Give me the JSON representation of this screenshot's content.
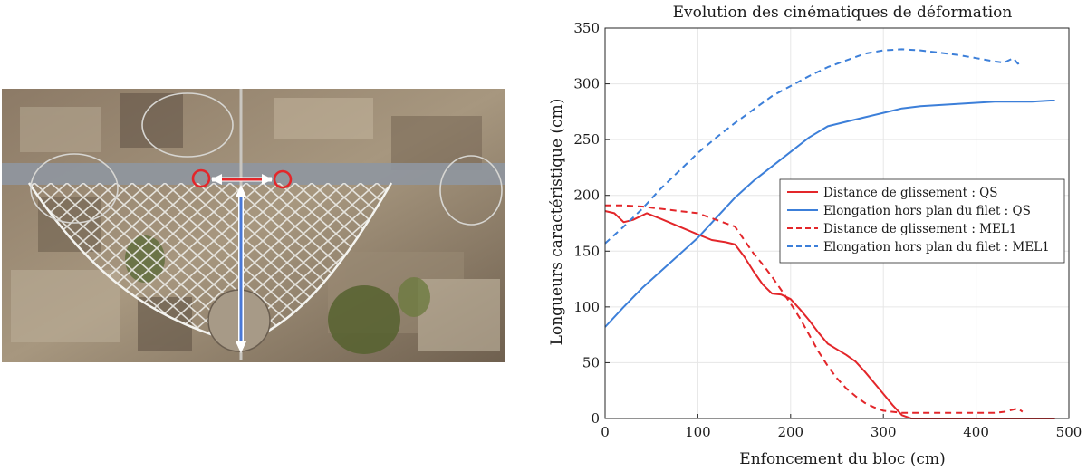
{
  "photo": {
    "subject": "rockfall-net-field-test",
    "markers": {
      "circle_color": "#e3262a",
      "horizontal_arrow_color": "#e3262a",
      "vertical_arrow_color": "#4a78d6"
    }
  },
  "chart_data": {
    "type": "line",
    "title": "Evolution des cinématiques de déformation",
    "xlabel": "Enfoncement du bloc (cm)",
    "ylabel": "Longueurs caractéristique (cm)",
    "xlim": [
      0,
      500
    ],
    "ylim": [
      0,
      350
    ],
    "xticks": [
      0,
      100,
      200,
      300,
      400,
      500
    ],
    "yticks": [
      0,
      50,
      100,
      150,
      200,
      250,
      300,
      350
    ],
    "grid": true,
    "legend_position": "middle-right",
    "series": [
      {
        "name": "Distance de glissement : QS",
        "color": "#e3262a",
        "dash": "solid",
        "x": [
          0,
          10,
          20,
          30,
          45,
          60,
          80,
          100,
          115,
          130,
          140,
          150,
          160,
          170,
          180,
          190,
          200,
          210,
          220,
          230,
          240,
          250,
          260,
          270,
          280,
          290,
          300,
          310,
          320,
          330,
          340,
          360,
          380,
          400,
          420,
          440,
          460,
          480,
          485
        ],
        "y": [
          186,
          184,
          176,
          178,
          184,
          179,
          172,
          165,
          160,
          158,
          156,
          145,
          132,
          120,
          112,
          111,
          107,
          98,
          88,
          77,
          67,
          62,
          57,
          51,
          42,
          32,
          22,
          12,
          3,
          0,
          0,
          0,
          0,
          0,
          0,
          0,
          0,
          0,
          0
        ]
      },
      {
        "name": "Elongation hors plan du filet : QS",
        "color": "#3c7fd9",
        "dash": "solid",
        "x": [
          0,
          20,
          40,
          60,
          80,
          100,
          120,
          140,
          160,
          180,
          200,
          220,
          240,
          260,
          280,
          300,
          320,
          340,
          360,
          380,
          400,
          420,
          440,
          460,
          480,
          485
        ],
        "y": [
          82,
          100,
          117,
          132,
          147,
          162,
          180,
          198,
          213,
          226,
          239,
          252,
          262,
          266,
          270,
          274,
          278,
          280,
          281,
          282,
          283,
          284,
          284,
          284,
          285,
          285
        ]
      },
      {
        "name": "Distance de glissement : MEL1",
        "color": "#e3262a",
        "dash": "dashed",
        "x": [
          0,
          20,
          40,
          60,
          80,
          100,
          120,
          140,
          150,
          160,
          170,
          180,
          190,
          200,
          210,
          220,
          230,
          240,
          250,
          260,
          270,
          280,
          290,
          300,
          310,
          320,
          340,
          360,
          380,
          400,
          420,
          430,
          440,
          445,
          450
        ],
        "y": [
          191,
          191,
          190,
          188,
          186,
          184,
          178,
          172,
          160,
          148,
          138,
          127,
          115,
          103,
          90,
          75,
          60,
          47,
          36,
          27,
          20,
          14,
          10,
          7,
          6,
          5,
          5,
          5,
          5,
          5,
          5,
          6,
          8,
          9,
          6
        ]
      },
      {
        "name": "Elongation hors plan du filet : MEL1",
        "color": "#3c7fd9",
        "dash": "dashed",
        "x": [
          0,
          20,
          40,
          60,
          80,
          100,
          120,
          140,
          160,
          180,
          200,
          220,
          240,
          260,
          280,
          300,
          320,
          340,
          360,
          380,
          400,
          420,
          430,
          440,
          445,
          450
        ],
        "y": [
          157,
          172,
          188,
          206,
          222,
          238,
          252,
          265,
          277,
          289,
          298,
          307,
          315,
          321,
          327,
          330,
          331,
          330,
          328,
          326,
          323,
          320,
          319,
          323,
          318,
          320
        ]
      }
    ]
  }
}
